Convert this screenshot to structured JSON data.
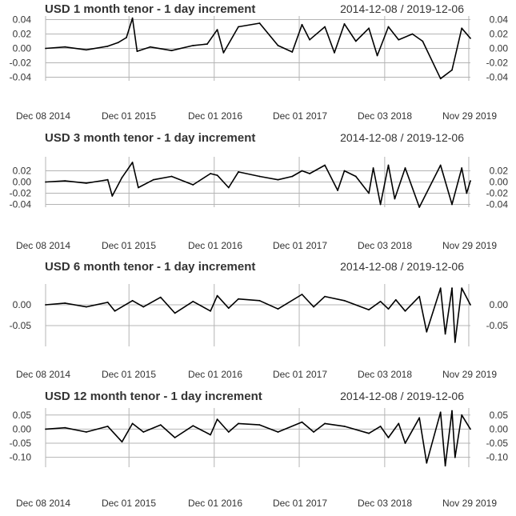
{
  "chart_data": [
    {
      "type": "line",
      "title": "USD 1 month tenor - 1 day increment",
      "date_range": "2014-12-08 / 2019-12-06",
      "x_range": [
        "2014-12-08",
        "2019-12-06"
      ],
      "x_ticks": [
        "2014-12-08",
        "2015-12-01",
        "2016-12-01",
        "2017-12-01",
        "2018-12-03",
        "2019-11-29"
      ],
      "x_tick_labels": [
        "Dec 08 2014",
        "Dec 01 2015",
        "Dec 01 2016",
        "Dec 01 2017",
        "Dec 03 2018",
        "Nov 29 2019"
      ],
      "ylim": [
        -0.045,
        0.045
      ],
      "y_ticks": [
        -0.04,
        -0.02,
        0.0,
        0.02,
        0.04
      ],
      "y_tick_labels": [
        "-0.04",
        "-0.02",
        "0.00",
        "0.02",
        "0.04"
      ],
      "grid": true,
      "series": [
        {
          "x": [
            "2014-12-08",
            "2015-03-01",
            "2015-06-01",
            "2015-09-01",
            "2015-10-15",
            "2015-11-20",
            "2015-12-16",
            "2016-01-05",
            "2016-03-01",
            "2016-06-01",
            "2016-09-01",
            "2016-11-01",
            "2016-12-14",
            "2017-01-10",
            "2017-03-15",
            "2017-06-14",
            "2017-09-01",
            "2017-11-01",
            "2017-12-13",
            "2018-01-15",
            "2018-03-21",
            "2018-05-01",
            "2018-06-13",
            "2018-08-01",
            "2018-09-26",
            "2018-11-01",
            "2018-12-19",
            "2019-02-01",
            "2019-04-01",
            "2019-05-15",
            "2019-07-31",
            "2019-09-18",
            "2019-10-30",
            "2019-12-06"
          ],
          "y": [
            0.0,
            0.002,
            -0.002,
            0.003,
            0.008,
            0.015,
            0.042,
            -0.004,
            0.002,
            -0.003,
            0.004,
            0.006,
            0.026,
            -0.006,
            0.03,
            0.035,
            0.004,
            -0.005,
            0.033,
            0.012,
            0.03,
            -0.006,
            0.034,
            0.01,
            0.028,
            -0.01,
            0.03,
            0.012,
            0.02,
            0.01,
            -0.042,
            -0.03,
            0.028,
            0.014
          ]
        }
      ]
    },
    {
      "type": "line",
      "title": "USD 3 month tenor - 1 day increment",
      "date_range": "2014-12-08 / 2019-12-06",
      "x_range": [
        "2014-12-08",
        "2019-12-06"
      ],
      "x_ticks": [
        "2014-12-08",
        "2015-12-01",
        "2016-12-01",
        "2017-12-01",
        "2018-12-03",
        "2019-11-29"
      ],
      "x_tick_labels": [
        "Dec 08 2014",
        "Dec 01 2015",
        "Dec 01 2016",
        "Dec 01 2017",
        "Dec 03 2018",
        "Nov 29 2019"
      ],
      "ylim": [
        -0.045,
        0.045
      ],
      "y_ticks": [
        -0.04,
        -0.02,
        0.0,
        0.02
      ],
      "y_tick_labels": [
        "-0.04",
        "-0.02",
        "0.00",
        "0.02"
      ],
      "grid": true,
      "series": [
        {
          "x": [
            "2014-12-08",
            "2015-03-01",
            "2015-06-01",
            "2015-09-01",
            "2015-09-20",
            "2015-11-01",
            "2015-12-16",
            "2016-01-10",
            "2016-03-15",
            "2016-06-01",
            "2016-09-01",
            "2016-11-15",
            "2016-12-14",
            "2017-02-01",
            "2017-03-15",
            "2017-06-14",
            "2017-09-01",
            "2017-11-01",
            "2017-12-13",
            "2018-01-15",
            "2018-03-21",
            "2018-05-15",
            "2018-06-13",
            "2018-08-01",
            "2018-09-26",
            "2018-10-15",
            "2018-11-15",
            "2018-12-19",
            "2019-01-15",
            "2019-03-01",
            "2019-05-01",
            "2019-07-31",
            "2019-09-18",
            "2019-10-30",
            "2019-11-20",
            "2019-12-06"
          ],
          "y": [
            0.0,
            0.002,
            -0.002,
            0.004,
            -0.025,
            0.008,
            0.035,
            -0.01,
            0.004,
            0.01,
            -0.005,
            0.015,
            0.012,
            -0.01,
            0.018,
            0.01,
            0.004,
            0.01,
            0.02,
            0.015,
            0.03,
            -0.015,
            0.02,
            0.01,
            -0.02,
            0.025,
            -0.04,
            0.03,
            -0.03,
            0.025,
            -0.045,
            0.03,
            -0.04,
            0.025,
            -0.02,
            0.002
          ]
        }
      ]
    },
    {
      "type": "line",
      "title": "USD 6 month tenor - 1 day increment",
      "date_range": "2014-12-08 / 2019-12-06",
      "x_range": [
        "2014-12-08",
        "2019-12-06"
      ],
      "x_ticks": [
        "2014-12-08",
        "2015-12-01",
        "2016-12-01",
        "2017-12-01",
        "2018-12-03",
        "2019-11-29"
      ],
      "x_tick_labels": [
        "Dec 08 2014",
        "Dec 01 2015",
        "Dec 01 2016",
        "Dec 01 2017",
        "Dec 03 2018",
        "Nov 29 2019"
      ],
      "ylim": [
        -0.1,
        0.05
      ],
      "y_ticks": [
        -0.05,
        0.0
      ],
      "y_tick_labels": [
        "-0.05",
        "0.00"
      ],
      "grid": true,
      "series": [
        {
          "x": [
            "2014-12-08",
            "2015-03-01",
            "2015-06-01",
            "2015-09-01",
            "2015-10-01",
            "2015-12-16",
            "2016-02-01",
            "2016-04-15",
            "2016-06-15",
            "2016-09-01",
            "2016-11-15",
            "2016-12-14",
            "2017-02-01",
            "2017-03-15",
            "2017-06-14",
            "2017-09-01",
            "2017-12-13",
            "2018-02-01",
            "2018-03-21",
            "2018-06-13",
            "2018-09-26",
            "2018-11-15",
            "2018-12-19",
            "2019-01-20",
            "2019-03-01",
            "2019-05-01",
            "2019-06-01",
            "2019-07-31",
            "2019-08-20",
            "2019-09-18",
            "2019-10-01",
            "2019-10-30",
            "2019-12-06"
          ],
          "y": [
            0.0,
            0.004,
            -0.005,
            0.006,
            -0.015,
            0.01,
            -0.005,
            0.018,
            -0.02,
            0.008,
            -0.015,
            0.022,
            -0.008,
            0.014,
            0.01,
            -0.01,
            0.025,
            -0.005,
            0.02,
            0.01,
            -0.012,
            0.008,
            -0.01,
            0.012,
            -0.015,
            0.02,
            -0.065,
            0.04,
            -0.07,
            0.04,
            -0.09,
            0.04,
            0.0
          ]
        }
      ]
    },
    {
      "type": "line",
      "title": "USD 12 month tenor - 1 day increment",
      "date_range": "2014-12-08 / 2019-12-06",
      "x_range": [
        "2014-12-08",
        "2019-12-06"
      ],
      "x_ticks": [
        "2014-12-08",
        "2015-12-01",
        "2016-12-01",
        "2017-12-01",
        "2018-12-03",
        "2019-11-29"
      ],
      "x_tick_labels": [
        "Dec 08 2014",
        "Dec 01 2015",
        "Dec 01 2016",
        "Dec 01 2017",
        "Dec 03 2018",
        "Nov 29 2019"
      ],
      "ylim": [
        -0.135,
        0.075
      ],
      "y_ticks": [
        -0.1,
        -0.05,
        0.0,
        0.05
      ],
      "y_tick_labels": [
        "-0.10",
        "-0.05",
        "0.00",
        "0.05"
      ],
      "grid": true,
      "series": [
        {
          "x": [
            "2014-12-08",
            "2015-03-01",
            "2015-06-01",
            "2015-09-01",
            "2015-11-01",
            "2015-12-16",
            "2016-02-01",
            "2016-04-15",
            "2016-06-15",
            "2016-09-01",
            "2016-11-15",
            "2016-12-14",
            "2017-02-01",
            "2017-03-15",
            "2017-06-14",
            "2017-09-01",
            "2017-12-13",
            "2018-02-01",
            "2018-03-21",
            "2018-06-13",
            "2018-09-26",
            "2018-11-15",
            "2018-12-19",
            "2019-02-01",
            "2019-03-01",
            "2019-05-01",
            "2019-06-01",
            "2019-07-31",
            "2019-08-20",
            "2019-09-18",
            "2019-10-01",
            "2019-10-30",
            "2019-12-06"
          ],
          "y": [
            0.0,
            0.005,
            -0.01,
            0.01,
            -0.045,
            0.02,
            -0.01,
            0.015,
            -0.03,
            0.012,
            -0.02,
            0.035,
            -0.01,
            0.02,
            0.015,
            -0.01,
            0.025,
            -0.01,
            0.02,
            0.01,
            -0.015,
            0.01,
            -0.03,
            0.02,
            -0.05,
            0.04,
            -0.12,
            0.06,
            -0.13,
            0.065,
            -0.1,
            0.05,
            0.0
          ]
        }
      ]
    }
  ]
}
